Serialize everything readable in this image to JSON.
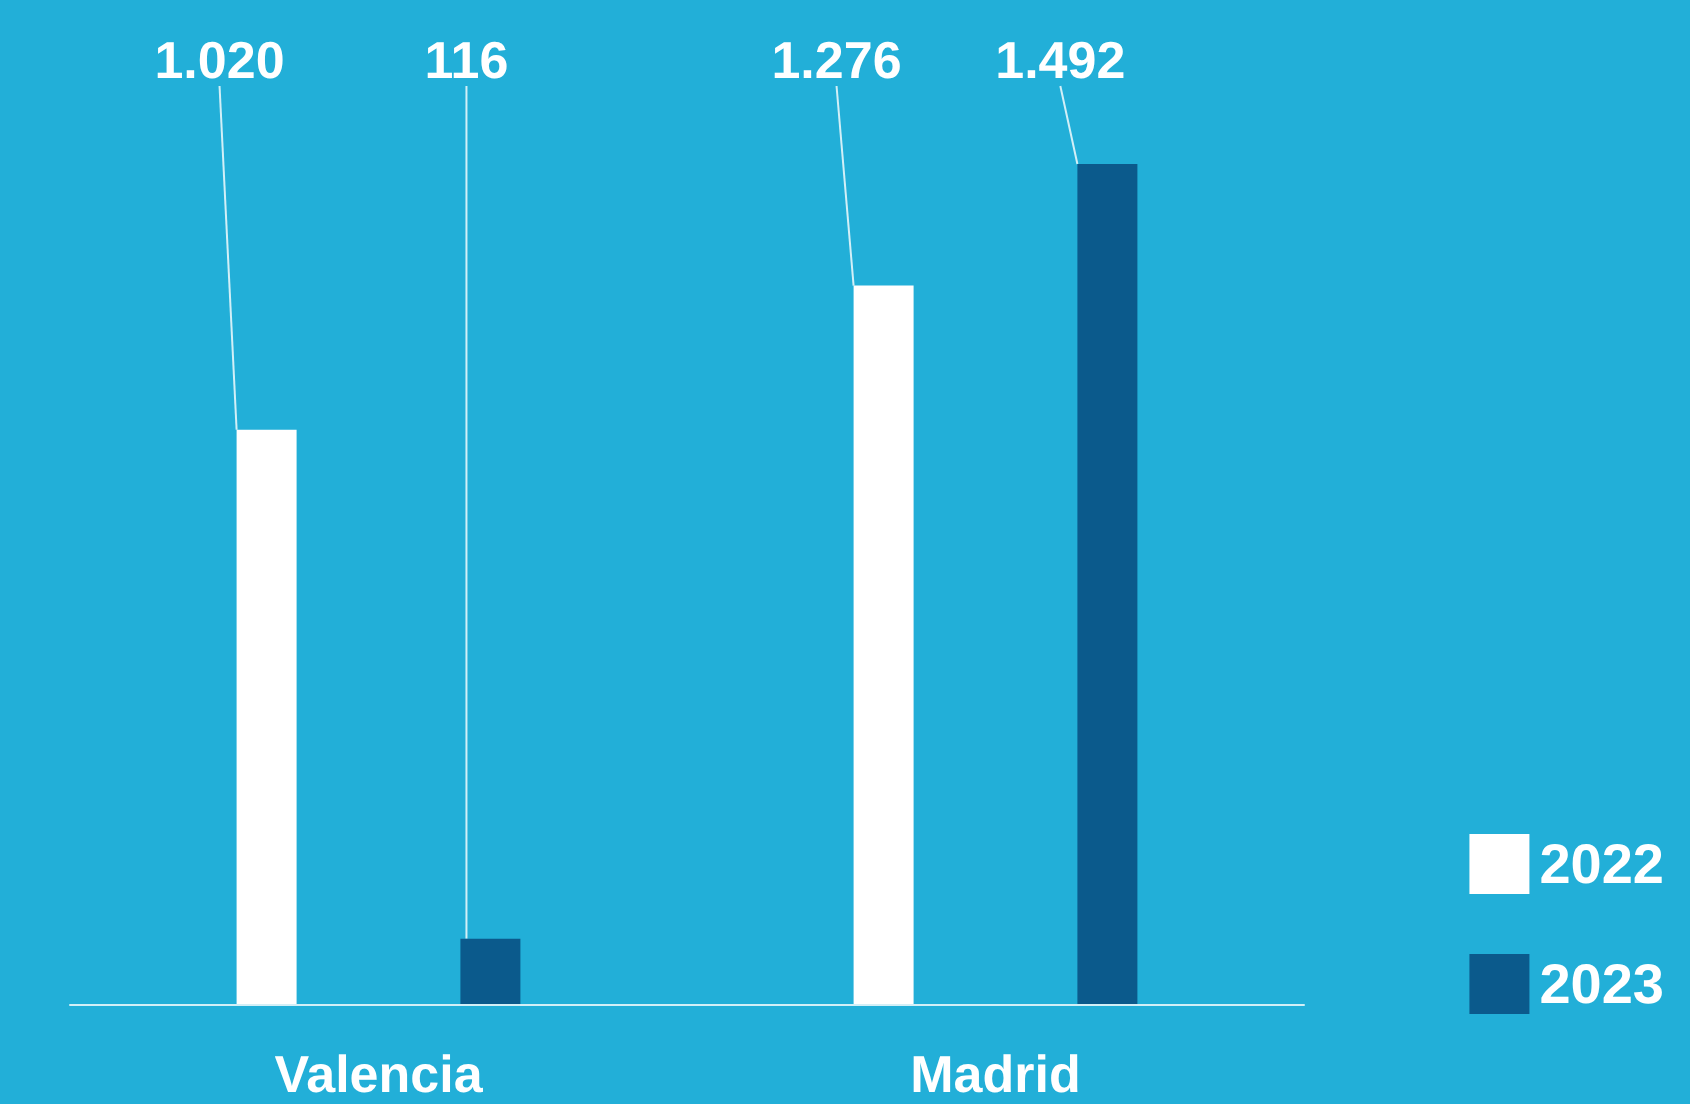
{
  "chart_data": {
    "type": "bar",
    "categories": [
      "Valencia",
      "Madrid"
    ],
    "series": [
      {
        "name": "2022",
        "color": "#ffffff",
        "values": [
          1020,
          1276
        ],
        "value_labels": [
          "1.020",
          "1.276"
        ]
      },
      {
        "name": "2023",
        "color": "#0b5a8c",
        "values": [
          116,
          1492
        ],
        "value_labels": [
          "116",
          "1.492"
        ]
      }
    ],
    "legend": "bottom right",
    "grid": false
  }
}
